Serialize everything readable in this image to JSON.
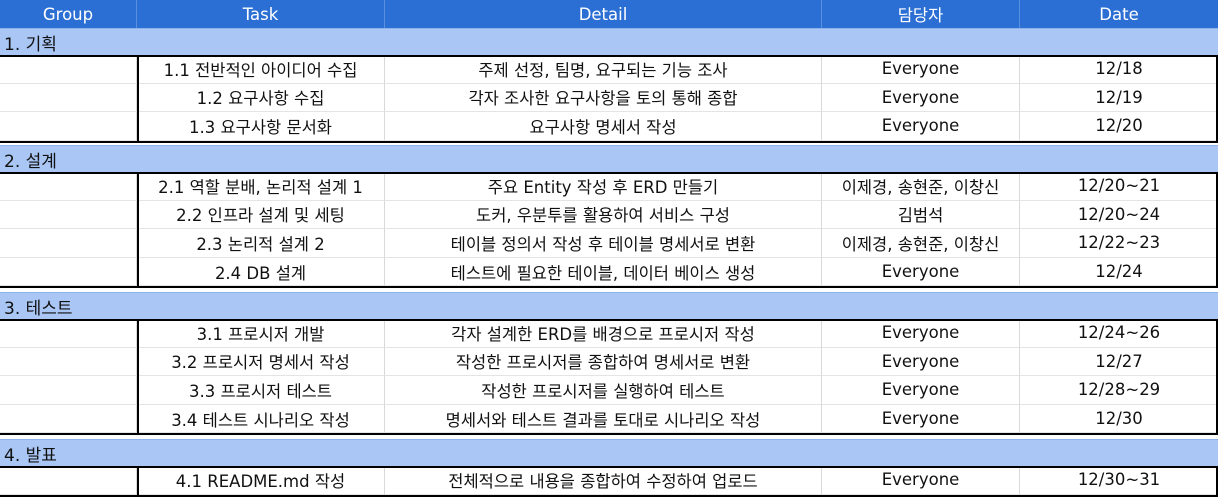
{
  "columns": [
    "Group",
    "Task",
    "Detail",
    "담당자",
    "Date"
  ],
  "groups": [
    {
      "label": "1. 기획",
      "tasks": [
        {
          "task": "1.1 전반적인 아이디어 수집",
          "detail": "주제 선정, 팀명, 요구되는 기능 조사",
          "owner": "Everyone",
          "date": "12/18"
        },
        {
          "task": "1.2 요구사항 수집",
          "detail": "각자 조사한 요구사항을 토의 통해 종합",
          "owner": "Everyone",
          "date": "12/19"
        },
        {
          "task": "1.3 요구사항 문서화",
          "detail": "요구사항 명세서 작성",
          "owner": "Everyone",
          "date": "12/20"
        }
      ]
    },
    {
      "label": "2. 설계",
      "tasks": [
        {
          "task": "2.1 역할 분배, 논리적 설계 1",
          "detail": "주요 Entity 작성 후 ERD 만들기",
          "owner": "이제경, 송현준, 이창신",
          "date": "12/20~21"
        },
        {
          "task": "2.2 인프라 설계 및 세팅",
          "detail": "도커, 우분투를 활용하여 서비스 구성",
          "owner": "김범석",
          "date": "12/20~24"
        },
        {
          "task": "2.3 논리적 설계 2",
          "detail": "테이블 정의서 작성 후 테이블 명세서로 변환",
          "owner": "이제경, 송현준, 이창신",
          "date": "12/22~23"
        },
        {
          "task": "2.4 DB 설계",
          "detail": "테스트에 필요한 테이블, 데이터 베이스 생성",
          "owner": "Everyone",
          "date": "12/24"
        }
      ]
    },
    {
      "label": "3. 테스트",
      "tasks": [
        {
          "task": "3.1 프로시저 개발",
          "detail": "각자 설계한 ERD를 배경으로 프로시저 작성",
          "owner": "Everyone",
          "date": "12/24~26"
        },
        {
          "task": "3.2 프로시저 명세서 작성",
          "detail": "작성한 프로시저를 종합하여 명세서로 변환",
          "owner": "Everyone",
          "date": "12/27"
        },
        {
          "task": "3.3 프로시저 테스트",
          "detail": "작성한 프로시저를 실행하여 테스트",
          "owner": "Everyone",
          "date": "12/28~29"
        },
        {
          "task": "3.4 테스트 시나리오 작성",
          "detail": "명세서와 테스트 결과를 토대로 시나리오 작성",
          "owner": "Everyone",
          "date": "12/30"
        }
      ]
    },
    {
      "label": "4. 발표",
      "tasks": [
        {
          "task": "4.1 README.md 작성",
          "detail": "전체적으로 내용을 종합하여 수정하여 업로드",
          "owner": "Everyone",
          "date": "12/30~31"
        }
      ]
    }
  ]
}
